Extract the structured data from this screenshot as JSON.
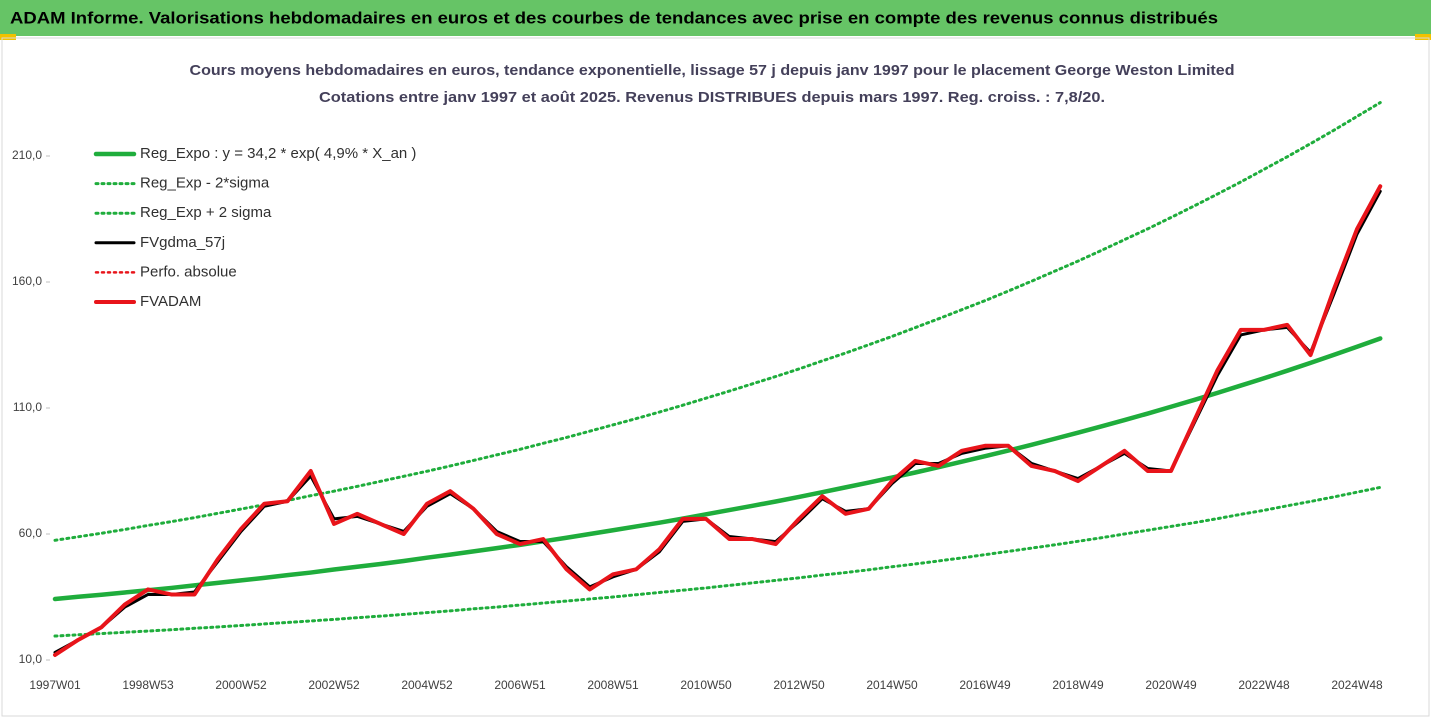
{
  "header": {
    "title": "ADAM Informe. Valorisations hebdomadaires en euros et des courbes de tendances avec prise en compte des revenus connus distribués"
  },
  "chart_data": {
    "type": "line",
    "title": "Cours moyens hebdomadaires en euros, tendance exponentielle, lissage 57 j depuis janv 1997 pour le placement George Weston Limited",
    "subtitle": "Cotations entre janv 1997 et août 2025.  Revenus DISTRIBUES depuis mars 1997. Reg. croiss. : 7,8/20.",
    "categories": [
      "1997W01",
      null,
      null,
      null,
      "1998W53",
      null,
      null,
      null,
      "2000W52",
      null,
      null,
      null,
      "2002W52",
      null,
      null,
      null,
      "2004W52",
      null,
      null,
      null,
      "2006W51",
      null,
      null,
      null,
      "2008W51",
      null,
      null,
      null,
      "2010W50",
      null,
      null,
      null,
      "2012W50",
      null,
      null,
      null,
      "2014W50",
      null,
      null,
      null,
      "2016W49",
      null,
      null,
      null,
      "2018W49",
      null,
      null,
      null,
      "2020W49",
      null,
      null,
      null,
      "2022W48",
      null,
      null,
      null,
      "2024W48",
      null
    ],
    "ylim": [
      10,
      240
    ],
    "yticks": [
      {
        "value": 10,
        "label": "10,0"
      },
      {
        "value": 60,
        "label": "60,0"
      },
      {
        "value": 110,
        "label": "110,0"
      },
      {
        "value": 160,
        "label": "160,0"
      },
      {
        "value": 210,
        "label": "210,0"
      }
    ],
    "grid": false,
    "legend": "top-left",
    "series": [
      {
        "name": "Reg_Expo : y = 34,2 * exp( 4,9% *  X_an )",
        "color": "#1fad3c",
        "style": "solid",
        "values": [
          34.2,
          35.1,
          35.9,
          36.8,
          37.7,
          38.6,
          39.6,
          40.6,
          41.6,
          42.6,
          43.7,
          44.7,
          45.9,
          47.0,
          48.1,
          49.3,
          50.6,
          51.8,
          53.1,
          54.4,
          55.7,
          57.1,
          58.5,
          60.0,
          61.5,
          63.0,
          64.5,
          66.1,
          67.8,
          69.5,
          71.2,
          72.9,
          74.7,
          76.6,
          78.5,
          80.4,
          82.4,
          84.4,
          86.5,
          88.7,
          90.9,
          93.1,
          95.4,
          97.8,
          100.2,
          102.7,
          105.2,
          107.8,
          110.5,
          113.2,
          116.0,
          118.9,
          121.8,
          124.8,
          127.9,
          131.1,
          134.3,
          137.6
        ]
      },
      {
        "name": "Reg_Exp - 2*sigma",
        "color": "#1fad3c",
        "style": "dotted",
        "values": [
          19.5,
          20.0,
          20.5,
          21.0,
          21.5,
          22.0,
          22.6,
          23.1,
          23.7,
          24.3,
          24.9,
          25.5,
          26.1,
          26.8,
          27.4,
          28.1,
          28.8,
          29.5,
          30.3,
          31.0,
          31.8,
          32.6,
          33.4,
          34.2,
          35.0,
          35.9,
          36.8,
          37.7,
          38.6,
          39.6,
          40.6,
          41.6,
          42.6,
          43.7,
          44.7,
          45.8,
          47.0,
          48.1,
          49.3,
          50.5,
          51.8,
          53.1,
          54.4,
          55.7,
          57.1,
          58.5,
          60.0,
          61.5,
          63.0,
          64.5,
          66.1,
          67.8,
          69.4,
          71.2,
          72.9,
          74.7,
          76.6,
          78.5
        ]
      },
      {
        "name": "Reg_Exp + 2 sigma",
        "color": "#1fad3c",
        "style": "dotted",
        "values": [
          57.5,
          58.9,
          60.3,
          61.8,
          63.4,
          64.9,
          66.5,
          68.2,
          69.9,
          71.6,
          73.3,
          75.2,
          77.0,
          78.9,
          80.9,
          82.9,
          84.9,
          87.0,
          89.2,
          91.4,
          93.6,
          96.0,
          98.3,
          100.8,
          103.3,
          105.8,
          108.4,
          111.1,
          113.9,
          116.7,
          119.6,
          122.5,
          125.5,
          128.7,
          131.8,
          135.1,
          138.4,
          141.9,
          145.4,
          149.0,
          152.6,
          156.4,
          160.3,
          164.3,
          168.3,
          172.5,
          176.8,
          181.1,
          185.6,
          190.2,
          194.9,
          199.7,
          204.7,
          209.7,
          214.9,
          220.2,
          225.7,
          231.2
        ]
      },
      {
        "name": "FVgdma_57j",
        "color": "#000000",
        "style": "solid",
        "values": [
          13,
          18,
          23,
          31,
          36,
          36,
          37,
          49,
          61,
          71,
          73,
          83,
          66,
          67,
          64,
          61,
          71,
          76,
          70,
          61,
          57,
          57,
          47,
          39,
          43,
          46,
          53,
          65,
          66,
          59,
          58,
          57,
          65,
          74,
          69,
          70,
          80,
          88,
          88,
          92,
          94,
          95,
          88,
          85,
          82,
          87,
          92,
          86,
          85,
          104,
          123,
          139,
          141,
          142,
          132,
          155,
          179,
          196
        ]
      },
      {
        "name": "Perfo. absolue",
        "color": "#e8141a",
        "style": "dotted",
        "values": [
          12,
          18,
          23,
          32,
          38,
          36,
          36,
          50,
          62,
          72,
          73,
          85,
          64,
          68,
          64,
          60,
          72,
          77,
          70,
          60,
          56,
          58,
          46,
          38,
          44,
          46,
          54,
          66,
          66,
          58,
          58,
          56,
          66,
          75,
          68,
          70,
          81,
          89,
          87,
          93,
          95,
          95,
          87,
          85,
          81,
          87,
          93,
          85,
          85,
          105,
          125,
          141,
          141,
          143,
          131,
          157,
          181,
          198
        ]
      },
      {
        "name": "FVADAM",
        "color": "#e8141a",
        "style": "solid",
        "values": [
          12,
          18,
          23,
          32,
          38,
          36,
          36,
          50,
          62,
          72,
          73,
          85,
          64,
          68,
          64,
          60,
          72,
          77,
          70,
          60,
          56,
          58,
          46,
          38,
          44,
          46,
          54,
          66,
          66,
          58,
          58,
          56,
          66,
          75,
          68,
          70,
          81,
          89,
          87,
          93,
          95,
          95,
          87,
          85,
          81,
          87,
          93,
          85,
          85,
          105,
          125,
          141,
          141,
          143,
          131,
          157,
          181,
          198
        ]
      }
    ]
  }
}
